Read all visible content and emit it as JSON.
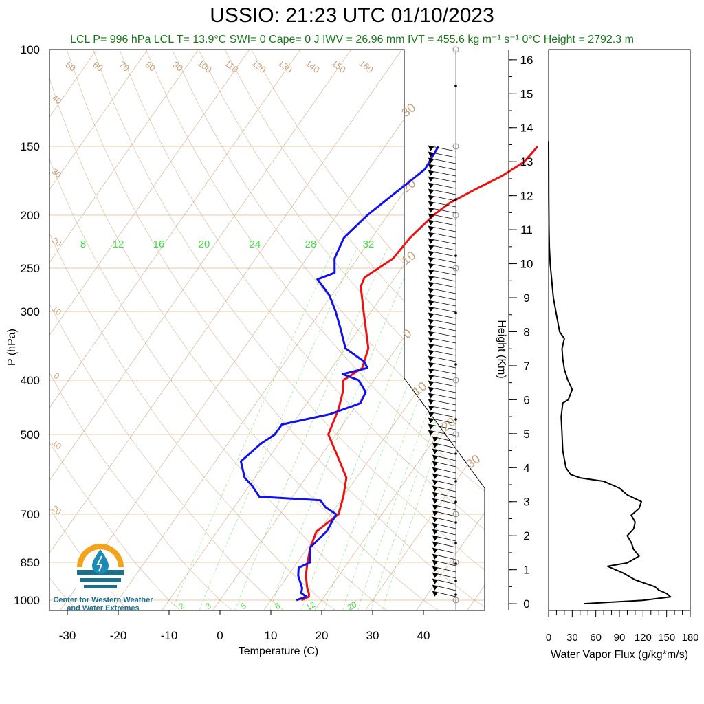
{
  "header": {
    "title": "USSIO: 21:23 UTC 01/10/2023",
    "subtitle": "LCL P= 996 hPa  LCL T= 13.9°C  SWI= 0  Cape= 0 J  IWV = 26.96 mm  IVT = 455.6 kg m⁻¹ s⁻¹  0°C Height = 2792.3 m"
  },
  "logo": {
    "line1": "Center for Western Weather",
    "line2": "and Water Extremes"
  },
  "colors": {
    "temperature": "#ee1111",
    "dewpoint": "#1111ee",
    "dry_adiabat": "#c8a27a",
    "mixing_ratio": "#44dd44",
    "isobar": "#e8c8a8",
    "flux": "#000000"
  },
  "chart_data": [
    {
      "type": "line",
      "name": "skew-t",
      "xlabel": "Temperature (C)",
      "ylabel": "P (hPa)",
      "xlim": [
        -34,
        52
      ],
      "x_ticks": [
        "-30",
        "-20",
        "-10",
        "0",
        "10",
        "20",
        "30",
        "40"
      ],
      "y_ticks": [
        "100",
        "150",
        "200",
        "250",
        "300",
        "400",
        "500",
        "700",
        "850",
        "1000"
      ],
      "isotherm_labels": [
        "50",
        "60",
        "70",
        "80",
        "90",
        "100",
        "110",
        "120",
        "130",
        "140",
        "150",
        "160",
        "40",
        "30",
        "20",
        "10",
        "0",
        "10",
        "20",
        "30",
        "20",
        "10",
        "0",
        "10",
        "20",
        "30"
      ],
      "mixing_ratio_top_labels": [
        "8",
        "12",
        "16",
        "20",
        "24",
        "28",
        "32"
      ],
      "mixing_ratio_bottom_labels": [
        "2",
        "3",
        "5",
        "8",
        "12",
        "20"
      ],
      "series": [
        {
          "name": "Temperature",
          "p": [
            1000,
            985,
            970,
            950,
            900,
            850,
            800,
            750,
            700,
            650,
            600,
            550,
            500,
            450,
            420,
            400,
            380,
            350,
            300,
            270,
            260,
            240,
            220,
            200,
            190,
            180,
            170,
            160,
            150
          ],
          "t": [
            16.0,
            17.0,
            16.5,
            15.5,
            13.5,
            12.0,
            10.5,
            9.5,
            11.5,
            10.0,
            8.0,
            3.5,
            -1.5,
            -3.0,
            -4.5,
            -6.0,
            -4.0,
            -5.5,
            -11.5,
            -15.5,
            -16.0,
            -13.0,
            -12.5,
            -11.0,
            -9.5,
            -6.5,
            -3.0,
            -0.5,
            0.0
          ]
        },
        {
          "name": "Dewpoint",
          "p": [
            1000,
            985,
            970,
            950,
            900,
            870,
            850,
            800,
            750,
            700,
            680,
            660,
            650,
            620,
            600,
            560,
            520,
            500,
            480,
            460,
            440,
            420,
            400,
            390,
            380,
            370,
            350,
            320,
            300,
            280,
            262,
            255,
            240,
            220,
            200,
            185,
            175,
            165,
            150
          ],
          "t": [
            15.0,
            16.5,
            15.0,
            14.5,
            12.0,
            11.0,
            12.5,
            10.5,
            11.5,
            11.0,
            8.0,
            6.0,
            -6.5,
            -9.5,
            -12.0,
            -15.0,
            -13.5,
            -12.0,
            -12.0,
            -4.0,
            0.5,
            0.0,
            -3.0,
            -7.0,
            -3.0,
            -4.5,
            -10.0,
            -14.0,
            -17.0,
            -20.5,
            -25.0,
            -22.5,
            -24.5,
            -25.5,
            -24.0,
            -22.0,
            -20.5,
            -19.0,
            -19.5
          ]
        }
      ]
    },
    {
      "type": "line",
      "name": "water-vapor-flux",
      "xlabel": "Water Vapor Flux (g/kg*m/s)",
      "ylabel": "Height (Km)",
      "xlim": [
        0,
        180
      ],
      "ylim": [
        0,
        16
      ],
      "x_ticks": [
        "0",
        "30",
        "60",
        "90",
        "120",
        "150",
        "180"
      ],
      "y_ticks": [
        "0",
        "1",
        "2",
        "3",
        "4",
        "5",
        "6",
        "7",
        "8",
        "9",
        "10",
        "11",
        "12",
        "13",
        "14",
        "15",
        "16"
      ],
      "series": [
        {
          "name": "Flux",
          "h": [
            0.0,
            0.1,
            0.2,
            0.3,
            0.4,
            0.5,
            0.7,
            0.9,
            1.0,
            1.1,
            1.2,
            1.4,
            1.6,
            1.8,
            2.0,
            2.2,
            2.4,
            2.6,
            2.8,
            3.0,
            3.2,
            3.4,
            3.6,
            3.7,
            3.8,
            4.0,
            4.5,
            5.0,
            5.5,
            5.9,
            6.0,
            6.3,
            6.6,
            6.9,
            7.2,
            7.5,
            7.8,
            8.0,
            8.5,
            9.0,
            9.5,
            10.0,
            10.5,
            11.0,
            12.0,
            13.0,
            13.6
          ],
          "v": [
            45,
            120,
            155,
            150,
            140,
            135,
            110,
            95,
            85,
            75,
            100,
            115,
            108,
            105,
            100,
            108,
            110,
            105,
            115,
            118,
            100,
            90,
            70,
            40,
            28,
            22,
            18,
            17,
            16,
            18,
            25,
            30,
            24,
            20,
            18,
            17,
            20,
            14,
            10,
            6,
            4,
            2,
            1,
            0.5,
            0.2,
            0.1,
            0
          ]
        }
      ]
    }
  ]
}
